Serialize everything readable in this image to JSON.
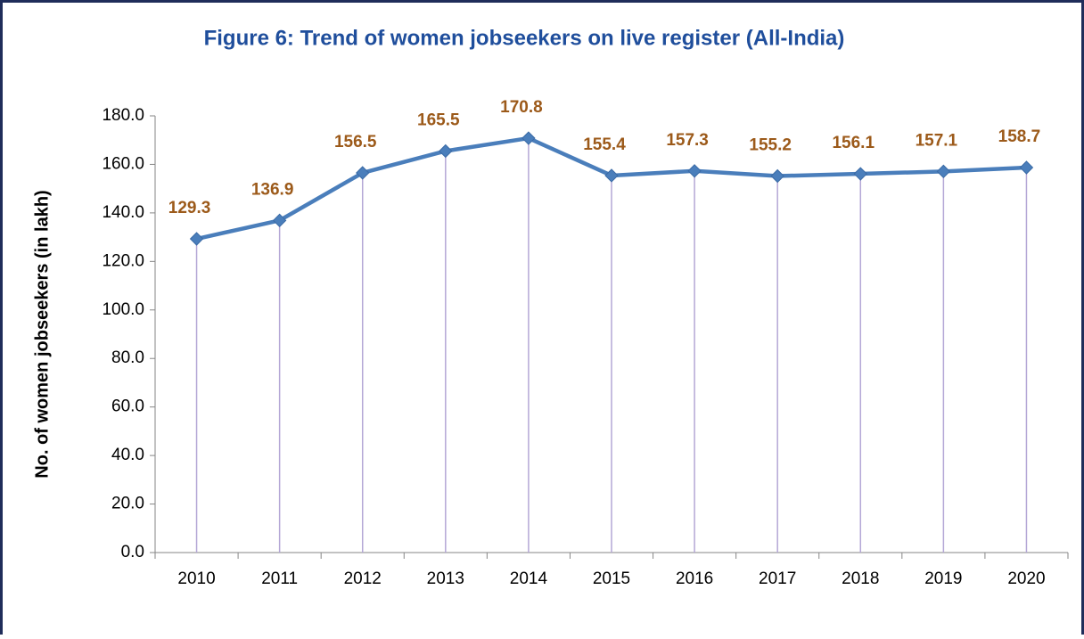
{
  "chart_data": {
    "type": "line",
    "title": "Figure 6: Trend of women jobseekers on live register  (All-India)",
    "y_label": "No. of women jobseekers (in lakh)",
    "categories": [
      "2010",
      "2011",
      "2012",
      "2013",
      "2014",
      "2015",
      "2016",
      "2017",
      "2018",
      "2019",
      "2020"
    ],
    "series": [
      {
        "name": "Women jobseekers",
        "color": "#4a7ebb",
        "values": [
          129.3,
          136.9,
          156.5,
          165.5,
          170.8,
          155.4,
          157.3,
          155.2,
          156.1,
          157.1,
          158.7
        ]
      }
    ],
    "ylim": [
      0,
      180
    ],
    "yticks": [
      {
        "value": 0,
        "label": "0.0"
      },
      {
        "value": 20,
        "label": "20.0"
      },
      {
        "value": 40,
        "label": "40.0"
      },
      {
        "value": 60,
        "label": "60.0"
      },
      {
        "value": 80,
        "label": "80.0"
      },
      {
        "value": 100,
        "label": "100.0"
      },
      {
        "value": 120,
        "label": "120.0"
      },
      {
        "value": 140,
        "label": "140.0"
      },
      {
        "value": 160,
        "label": "160.0"
      },
      {
        "value": 180,
        "label": "180.0"
      }
    ],
    "drop_lines": true,
    "drop_line_color": "#b4a7d6",
    "label_color": "#9c5a1a"
  }
}
